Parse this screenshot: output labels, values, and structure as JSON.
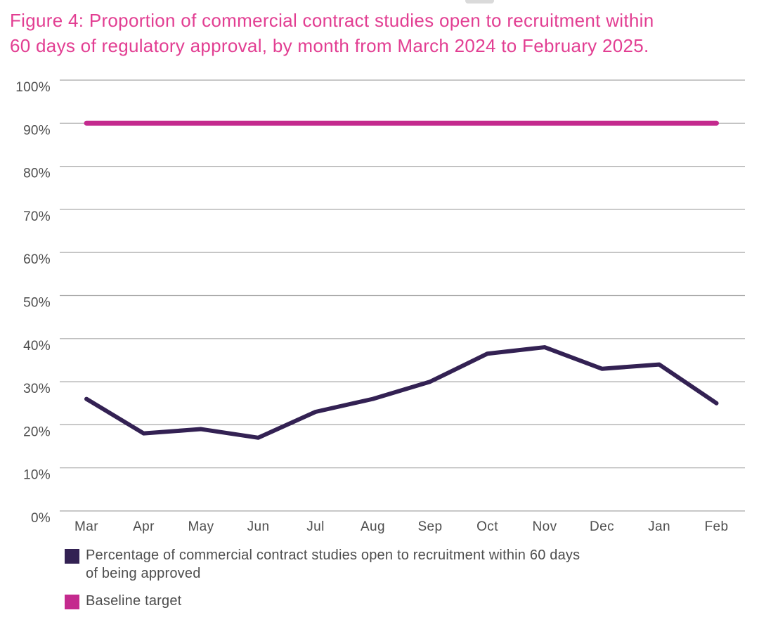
{
  "theme": {
    "background": "#ffffff",
    "title_color": "#e23e92",
    "axis_text_color": "#4d4d4d",
    "gridline_color": "#a8a8a8",
    "series_color": "#332153",
    "baseline_color": "#c42a8e"
  },
  "header": {
    "title_lines": [
      "Figure 4: Proportion of commercial contract studies open to recruitment within",
      "60 days of regulatory approval, by month from March 2024 to February 2025."
    ]
  },
  "chart_data": {
    "type": "line",
    "title": "Figure 4: Proportion of commercial contract studies open to recruitment within 60 days of regulatory approval, by month from March 2024 to February 2025.",
    "categories": [
      "Mar",
      "Apr",
      "May",
      "Jun",
      "Jul",
      "Aug",
      "Sep",
      "Oct",
      "Nov",
      "Dec",
      "Jan",
      "Feb"
    ],
    "series": [
      {
        "name": "Percentage of commercial contract studies open to recruitment within 60 days of being approved",
        "values": [
          26,
          18,
          19,
          17,
          23,
          26,
          30,
          36.5,
          38,
          33,
          34,
          25
        ],
        "color": "#332153",
        "style": "line"
      },
      {
        "name": "Baseline target",
        "style": "constant-line",
        "value": 90,
        "color": "#c42a8e"
      }
    ],
    "xlabel": "",
    "ylabel": "",
    "ylim": [
      0,
      100
    ],
    "ytick_step": 10,
    "ytick_suffix": "%",
    "grid": true,
    "legend_position": "bottom-left"
  },
  "legend": {
    "items": [
      {
        "lines": [
          "Percentage of commercial contract studies open to recruitment within 60 days",
          "of being approved"
        ],
        "color": "#332153"
      },
      {
        "lines": [
          "Baseline target"
        ],
        "color": "#c42a8e"
      }
    ]
  }
}
